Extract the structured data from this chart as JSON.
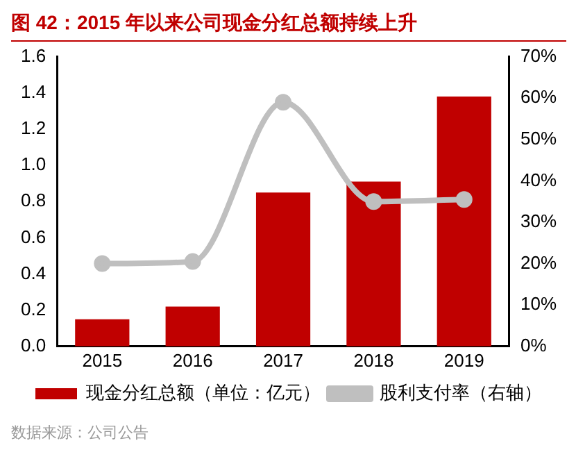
{
  "chart_data": {
    "type": "bar",
    "title": "图 42：2015 年以来公司现金分红总额持续上升",
    "categories": [
      "2015",
      "2016",
      "2017",
      "2018",
      "2019"
    ],
    "series": [
      {
        "name": "现金分红总额（单位：亿元）",
        "color": "#c00000",
        "values": [
          0.15,
          0.22,
          0.85,
          0.91,
          1.38
        ]
      },
      {
        "name": "股利支付率（右轴）",
        "type": "line",
        "axis": "y2",
        "color": "#bfbfbf",
        "values": [
          20,
          20.5,
          59,
          35,
          35.5
        ]
      }
    ],
    "ylim": [
      0,
      1.6
    ],
    "yticks": [
      {
        "value": 0,
        "label": "0.0"
      },
      0.2,
      0.4,
      0.6,
      0.8,
      {
        "value": 1.0,
        "label": "1.0"
      },
      1.2,
      1.4,
      1.6
    ],
    "y2lim": [
      0,
      70
    ],
    "y2ticks": [
      {
        "value": 0,
        "label": "0%"
      },
      {
        "value": 10,
        "label": "10%"
      },
      {
        "value": 20,
        "label": "20%"
      },
      {
        "value": 30,
        "label": "30%"
      },
      {
        "value": 40,
        "label": "40%"
      },
      {
        "value": 50,
        "label": "50%"
      },
      {
        "value": 60,
        "label": "60%"
      },
      {
        "value": 70,
        "label": "70%"
      }
    ],
    "grid": false,
    "legend": "bottom",
    "marker": "circle",
    "annotations": [
      "数据来源：公司公告"
    ]
  }
}
